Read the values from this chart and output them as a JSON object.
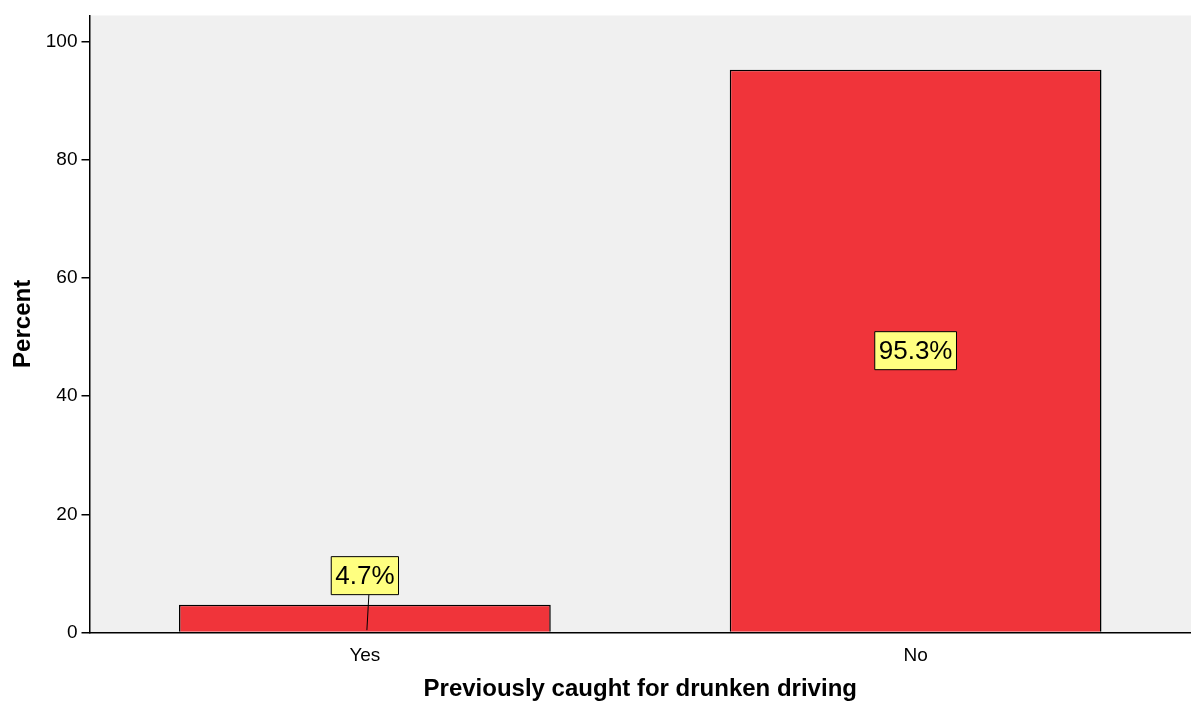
{
  "chart_data": {
    "type": "bar",
    "xlabel": "Previously caught for drunken driving",
    "ylabel": "Percent",
    "categories": [
      "Yes",
      "No"
    ],
    "values": [
      4.7,
      95.3
    ],
    "color": "#f0343a",
    "value_labels": [
      "4.7%",
      "95.3%"
    ],
    "ylim": [
      0,
      104.5
    ],
    "yticks": [
      0,
      20,
      40,
      60,
      80,
      100
    ],
    "grid": false,
    "legend": false
  }
}
